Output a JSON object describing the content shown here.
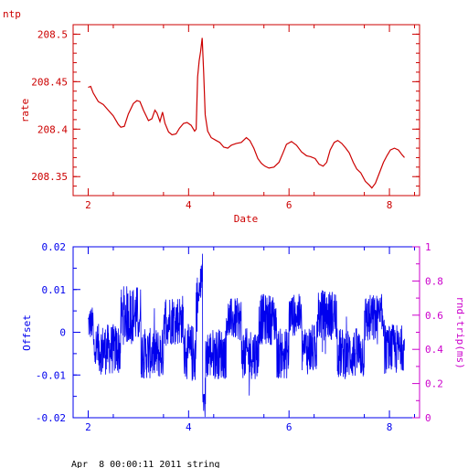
{
  "header": {
    "label": "ntp"
  },
  "footer": {
    "text": "Apr  8 00:00:11 2011 string"
  },
  "colors": {
    "red": "#cc0000",
    "blue": "#0000ee",
    "magenta": "#cc00cc"
  },
  "chart_data": [
    {
      "type": "line",
      "title": "",
      "xlabel": "Date",
      "ylabel": "rate",
      "xlim": [
        1.7,
        8.6
      ],
      "ylim": [
        208.33,
        208.51
      ],
      "x_ticks": [
        2,
        4,
        6,
        8
      ],
      "y_ticks": [
        208.35,
        208.4,
        208.45,
        208.5
      ],
      "y_tick_labels": [
        "208.35",
        "208.4",
        "208.45",
        "208.5"
      ],
      "series": [
        {
          "color": "#cc0000",
          "points": [
            [
              2.0,
              208.444
            ],
            [
              2.05,
              208.445
            ],
            [
              2.1,
              208.438
            ],
            [
              2.2,
              208.429
            ],
            [
              2.3,
              208.426
            ],
            [
              2.4,
              208.42
            ],
            [
              2.5,
              208.414
            ],
            [
              2.6,
              208.405
            ],
            [
              2.65,
              208.402
            ],
            [
              2.72,
              208.403
            ],
            [
              2.8,
              208.416
            ],
            [
              2.9,
              208.427
            ],
            [
              2.97,
              208.43
            ],
            [
              3.03,
              208.429
            ],
            [
              3.1,
              208.42
            ],
            [
              3.2,
              208.409
            ],
            [
              3.27,
              208.411
            ],
            [
              3.33,
              208.42
            ],
            [
              3.37,
              208.417
            ],
            [
              3.43,
              208.408
            ],
            [
              3.48,
              208.418
            ],
            [
              3.53,
              208.406
            ],
            [
              3.6,
              208.397
            ],
            [
              3.67,
              208.394
            ],
            [
              3.75,
              208.395
            ],
            [
              3.82,
              208.401
            ],
            [
              3.9,
              208.406
            ],
            [
              3.97,
              208.407
            ],
            [
              4.05,
              208.404
            ],
            [
              4.12,
              208.398
            ],
            [
              4.15,
              208.4
            ],
            [
              4.18,
              208.455
            ],
            [
              4.21,
              208.472
            ],
            [
              4.24,
              208.482
            ],
            [
              4.27,
              208.496
            ],
            [
              4.3,
              208.46
            ],
            [
              4.33,
              208.415
            ],
            [
              4.38,
              208.398
            ],
            [
              4.45,
              208.391
            ],
            [
              4.55,
              208.388
            ],
            [
              4.62,
              208.386
            ],
            [
              4.7,
              208.381
            ],
            [
              4.78,
              208.38
            ],
            [
              4.85,
              208.383
            ],
            [
              4.95,
              208.385
            ],
            [
              5.05,
              208.386
            ],
            [
              5.15,
              208.391
            ],
            [
              5.22,
              208.388
            ],
            [
              5.3,
              208.38
            ],
            [
              5.38,
              208.369
            ],
            [
              5.45,
              208.364
            ],
            [
              5.52,
              208.361
            ],
            [
              5.6,
              208.359
            ],
            [
              5.7,
              208.36
            ],
            [
              5.8,
              208.365
            ],
            [
              5.88,
              208.375
            ],
            [
              5.95,
              208.384
            ],
            [
              6.05,
              208.387
            ],
            [
              6.15,
              208.383
            ],
            [
              6.25,
              208.376
            ],
            [
              6.35,
              208.372
            ],
            [
              6.43,
              208.371
            ],
            [
              6.52,
              208.369
            ],
            [
              6.6,
              208.363
            ],
            [
              6.68,
              208.361
            ],
            [
              6.75,
              208.365
            ],
            [
              6.82,
              208.378
            ],
            [
              6.9,
              208.386
            ],
            [
              6.97,
              208.388
            ],
            [
              7.05,
              208.385
            ],
            [
              7.13,
              208.38
            ],
            [
              7.2,
              208.375
            ],
            [
              7.28,
              208.365
            ],
            [
              7.35,
              208.358
            ],
            [
              7.43,
              208.354
            ],
            [
              7.52,
              208.345
            ],
            [
              7.6,
              208.341
            ],
            [
              7.65,
              208.338
            ],
            [
              7.72,
              208.343
            ],
            [
              7.8,
              208.354
            ],
            [
              7.88,
              208.365
            ],
            [
              7.95,
              208.372
            ],
            [
              8.02,
              208.378
            ],
            [
              8.1,
              208.38
            ],
            [
              8.18,
              208.378
            ],
            [
              8.25,
              208.373
            ],
            [
              8.3,
              208.37
            ]
          ]
        }
      ]
    },
    {
      "type": "line",
      "title": "",
      "xlabel": "",
      "ylabel": "Offset",
      "y2label": "rnd-trip(ms)",
      "xlim": [
        1.7,
        8.6
      ],
      "ylim": [
        -0.02,
        0.02
      ],
      "y2lim": [
        0,
        1
      ],
      "x_ticks": [
        2,
        4,
        6,
        8
      ],
      "y_ticks": [
        -0.02,
        -0.01,
        0,
        0.01,
        0.02
      ],
      "y_tick_labels": [
        "-0.02",
        "-0.01",
        "0",
        "0.01",
        "0.02"
      ],
      "y2_ticks": [
        0,
        0.2,
        0.4,
        0.6,
        0.8,
        1
      ],
      "y2_tick_labels": [
        "0",
        "0.2",
        "0.4",
        "0.6",
        "0.8",
        "1"
      ],
      "series": [
        {
          "color": "#0000ee",
          "x_start": 2.0,
          "x_end": 8.3,
          "segments": [
            [
              2.0,
              2.1,
              0.002,
              0.004
            ],
            [
              2.1,
              2.65,
              -0.004,
              0.006
            ],
            [
              2.65,
              3.05,
              0.004,
              0.007
            ],
            [
              3.05,
              3.5,
              -0.005,
              0.006
            ],
            [
              3.5,
              3.9,
              0.003,
              0.006
            ],
            [
              3.9,
              4.15,
              -0.005,
              0.007
            ],
            [
              4.15,
              4.28,
              0.007,
              0.007
            ],
            [
              4.28,
              4.34,
              -0.016,
              0.006
            ],
            [
              4.34,
              4.75,
              -0.005,
              0.006
            ],
            [
              4.75,
              5.05,
              0.003,
              0.005
            ],
            [
              5.05,
              5.4,
              -0.005,
              0.006
            ],
            [
              5.4,
              5.75,
              0.003,
              0.006
            ],
            [
              5.75,
              6.0,
              -0.005,
              0.006
            ],
            [
              6.0,
              6.25,
              0.004,
              0.005
            ],
            [
              6.25,
              6.55,
              -0.004,
              0.006
            ],
            [
              6.55,
              6.95,
              0.004,
              0.006
            ],
            [
              6.95,
              7.5,
              -0.005,
              0.006
            ],
            [
              7.5,
              7.9,
              0.003,
              0.006
            ],
            [
              7.9,
              8.15,
              -0.004,
              0.006
            ],
            [
              8.15,
              8.3,
              -0.004,
              0.005
            ]
          ]
        }
      ]
    }
  ]
}
